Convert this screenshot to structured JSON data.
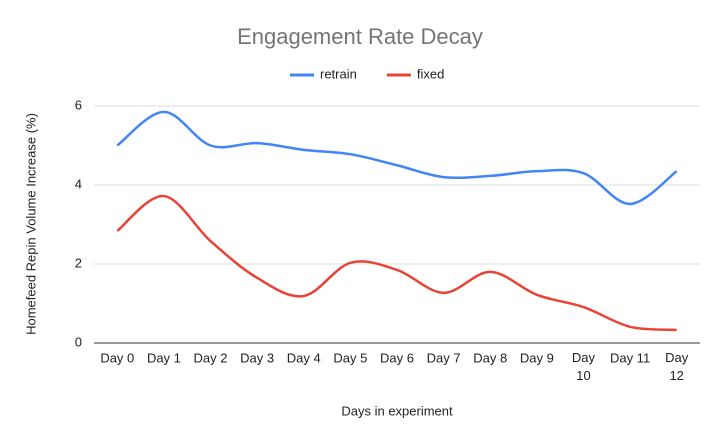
{
  "chart_data": {
    "type": "line",
    "title": "Engagement Rate Decay",
    "x_label": "Days in experiment",
    "y_label": "Homefeed Repin Volume Increase (%)",
    "categories": [
      "Day 0",
      "Day 1",
      "Day 2",
      "Day 3",
      "Day 4",
      "Day 5",
      "Day 6",
      "Day 7",
      "Day 8",
      "Day 9",
      "Day 10",
      "Day 11",
      "Day 12"
    ],
    "series": [
      {
        "name": "retrain",
        "color": "#4285f4",
        "values": [
          5.0,
          5.85,
          5.0,
          5.06,
          4.89,
          4.78,
          4.5,
          4.2,
          4.23,
          4.35,
          4.3,
          3.52,
          4.35
        ]
      },
      {
        "name": "fixed",
        "color": "#ea4335",
        "values": [
          2.84,
          3.72,
          2.58,
          1.65,
          1.19,
          2.03,
          1.85,
          1.27,
          1.8,
          1.22,
          0.91,
          0.41,
          0.33
        ]
      }
    ],
    "ylim": [
      0,
      6
    ],
    "yticks": [
      0,
      2,
      4,
      6
    ],
    "grid": true,
    "legend": "top"
  }
}
